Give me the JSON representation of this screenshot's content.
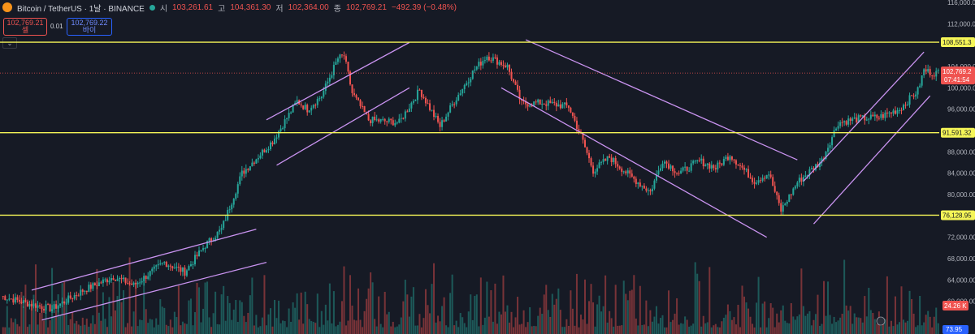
{
  "header": {
    "symbol_title": "Bitcoin / TetherUS · 1날 · BINANCE",
    "ohlc": [
      {
        "label": "시",
        "value": "103,261.61"
      },
      {
        "label": "고",
        "value": "104,361.30"
      },
      {
        "label": "저",
        "value": "102,364.00"
      },
      {
        "label": "종",
        "value": "102,769.21"
      }
    ],
    "change": "−492.39 (−0.48%)"
  },
  "trade": {
    "sell_price": "102,769.21",
    "sell_label": "셀",
    "spread": "0.01",
    "buy_price": "102,769.22",
    "buy_label": "바이"
  },
  "colors": {
    "background": "#161a25",
    "up": "#26a69a",
    "down": "#ef5350",
    "level_line": "#f5f557",
    "trend_line": "#c993f0",
    "axis_text": "#b2b5be"
  },
  "chart_data": {
    "type": "candlestick",
    "title": "Bitcoin / TetherUS · 1날 · BINANCE",
    "y_axis": {
      "ylim": [
        56000,
        116000
      ],
      "ticks": [
        "116,000.00",
        "112,000.00",
        "104,000.00",
        "100,000.00",
        "96,000.00",
        "88,000.00",
        "84,000.00",
        "80,000.00",
        "72,000.00",
        "68,000.00",
        "64,000.00",
        "60,000.00"
      ],
      "tick_values": [
        116000,
        112000,
        104000,
        100000,
        96000,
        88000,
        84000,
        80000,
        72000,
        68000,
        64000,
        60000
      ]
    },
    "horizontal_levels": [
      {
        "value": 108551.3,
        "label": "108,551.3"
      },
      {
        "value": 91591.32,
        "label": "91,591.32"
      },
      {
        "value": 76128.95,
        "label": "76,128.95"
      }
    ],
    "current_price": {
      "value": 102769.21,
      "label": "102,769.2",
      "countdown": "07:41:54"
    },
    "volume_label": "24.26 K",
    "indicator_label": "73.95",
    "price_path_keypoints": [
      [
        0,
        61000
      ],
      [
        14,
        59500
      ],
      [
        25,
        58600
      ],
      [
        40,
        62000
      ],
      [
        55,
        64600
      ],
      [
        65,
        63000
      ],
      [
        80,
        67300
      ],
      [
        90,
        65500
      ],
      [
        100,
        70500
      ],
      [
        108,
        73500
      ],
      [
        118,
        84000
      ],
      [
        122,
        85600
      ],
      [
        133,
        90000
      ],
      [
        145,
        97500
      ],
      [
        150,
        96000
      ],
      [
        157,
        98500
      ],
      [
        165,
        105500
      ],
      [
        168,
        106000
      ],
      [
        172,
        99000
      ],
      [
        180,
        94000
      ],
      [
        195,
        93500
      ],
      [
        205,
        99600
      ],
      [
        215,
        92800
      ],
      [
        222,
        97500
      ],
      [
        232,
        103500
      ],
      [
        238,
        106000
      ],
      [
        248,
        104000
      ],
      [
        255,
        97000
      ],
      [
        265,
        97200
      ],
      [
        278,
        96500
      ],
      [
        284,
        91000
      ],
      [
        290,
        84500
      ],
      [
        298,
        87000
      ],
      [
        308,
        83500
      ],
      [
        318,
        80500
      ],
      [
        324,
        86500
      ],
      [
        332,
        84000
      ],
      [
        342,
        86300
      ],
      [
        350,
        85000
      ],
      [
        357,
        87500
      ],
      [
        363,
        85000
      ],
      [
        369,
        82500
      ],
      [
        376,
        84000
      ],
      [
        382,
        77000
      ],
      [
        390,
        82300
      ],
      [
        402,
        86400
      ],
      [
        410,
        93500
      ],
      [
        420,
        94200
      ],
      [
        430,
        94500
      ],
      [
        440,
        96000
      ],
      [
        449,
        99500
      ],
      [
        452,
        103300
      ],
      [
        456,
        102800
      ]
    ],
    "trend_lines": [
      {
        "name": "lower-left-upper",
        "from": [
          15,
          62100
        ],
        "to": [
          125,
          73500
        ]
      },
      {
        "name": "lower-left-lower",
        "from": [
          20,
          56500
        ],
        "to": [
          130,
          67300
        ]
      },
      {
        "name": "channel-1-upper",
        "from": [
          130,
          94000
        ],
        "to": [
          200,
          108500
        ]
      },
      {
        "name": "channel-1-lower",
        "from": [
          135,
          85500
        ],
        "to": [
          200,
          100000
        ]
      },
      {
        "name": "down-channel-upper",
        "from": [
          257,
          109000
        ],
        "to": [
          390,
          86500
        ]
      },
      {
        "name": "down-channel-lower",
        "from": [
          245,
          100000
        ],
        "to": [
          375,
          72000
        ]
      },
      {
        "name": "up-channel-upper",
        "from": [
          393,
          82500
        ],
        "to": [
          452,
          106700
        ]
      },
      {
        "name": "up-channel-lower",
        "from": [
          398,
          74500
        ],
        "to": [
          455,
          98500
        ]
      }
    ],
    "grid": false,
    "legend": "none"
  }
}
